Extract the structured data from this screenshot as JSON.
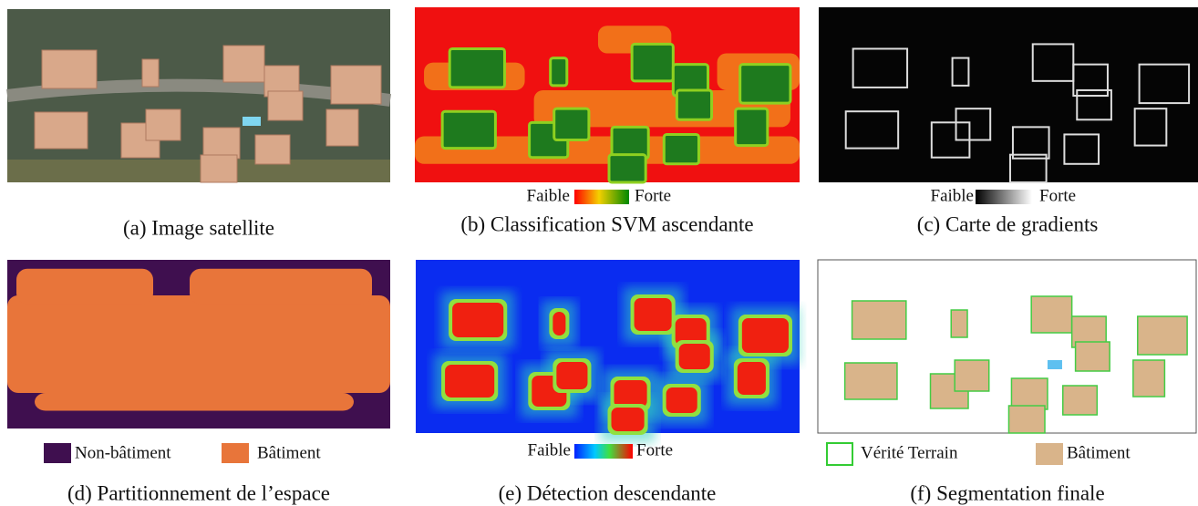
{
  "panels": [
    {
      "caption": "(a) Image satellite"
    },
    {
      "caption": "(b) Classification SVM ascendante",
      "legend": {
        "low": "Faible",
        "high": "Forte"
      }
    },
    {
      "caption": "(c) Carte de gradients",
      "legend": {
        "low": "Faible",
        "high": "Forte"
      }
    },
    {
      "caption": "(d) Partitionnement de l’espace",
      "legend": [
        "Non-bâtiment",
        "Bâtiment"
      ]
    },
    {
      "caption": "(e) Détection descendante",
      "legend": {
        "low": "Faible",
        "high": "Forte"
      }
    },
    {
      "caption": "(f) Segmentation finale",
      "legend": [
        "Vérité Terrain",
        "Bâtiment"
      ]
    }
  ]
}
